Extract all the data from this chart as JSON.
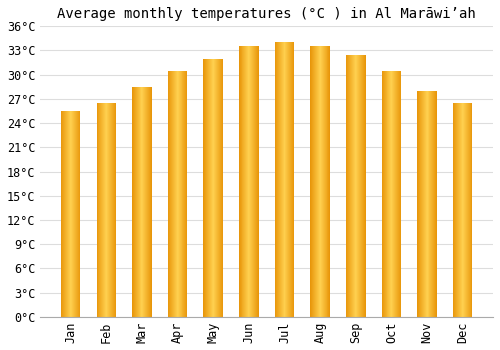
{
  "title": "Average monthly temperatures (°C ) in Al Marāwiʼah",
  "months": [
    "Jan",
    "Feb",
    "Mar",
    "Apr",
    "May",
    "Jun",
    "Jul",
    "Aug",
    "Sep",
    "Oct",
    "Nov",
    "Dec"
  ],
  "temperatures": [
    25.5,
    26.5,
    28.5,
    30.5,
    32.0,
    33.5,
    34.0,
    33.5,
    32.5,
    30.5,
    28.0,
    26.5
  ],
  "bar_color_left": "#E8960A",
  "bar_color_center": "#FFD050",
  "bar_color_right": "#E8960A",
  "ylim": [
    0,
    36
  ],
  "yticks": [
    0,
    3,
    6,
    9,
    12,
    15,
    18,
    21,
    24,
    27,
    30,
    33,
    36
  ],
  "background_color": "#ffffff",
  "grid_color": "#dddddd",
  "title_fontsize": 10,
  "tick_fontsize": 8.5,
  "font_family": "monospace",
  "bar_width": 0.55
}
